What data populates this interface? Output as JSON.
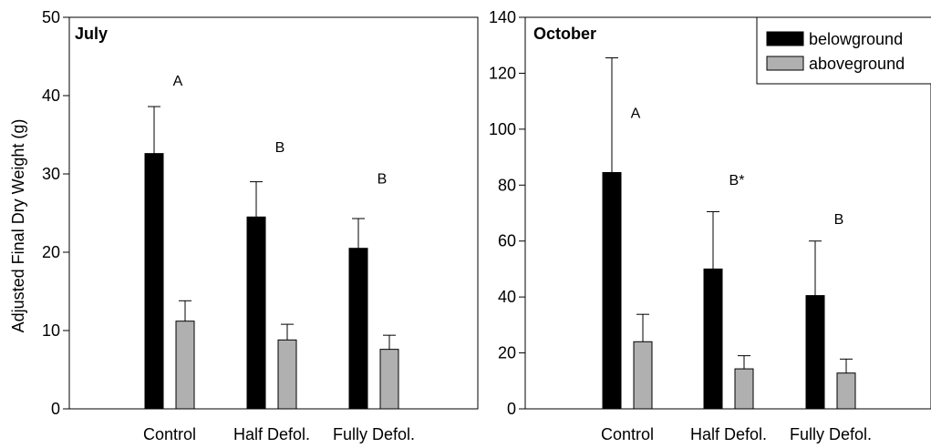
{
  "shared": {
    "ylabel": "Adjusted Final Dry Weight (g)",
    "categories": [
      "Control",
      "Half Defol.",
      "Fully Defol."
    ]
  },
  "legend": {
    "placement": "top-right",
    "items": [
      {
        "name": "belowground",
        "color": "#000000"
      },
      {
        "name": "aboveground",
        "color": "#b0b0b0"
      }
    ]
  },
  "chart_data": [
    {
      "type": "bar",
      "title": "July",
      "ylim": [
        0,
        50
      ],
      "yticks": [
        0,
        10,
        20,
        30,
        40,
        50
      ],
      "categories": [
        "Control",
        "Half Defol.",
        "Fully Defol."
      ],
      "series": [
        {
          "name": "belowground",
          "color": "#000000",
          "values": [
            32.6,
            24.5,
            20.5
          ],
          "errors": [
            6.0,
            4.5,
            3.8
          ]
        },
        {
          "name": "aboveground",
          "color": "#b0b0b0",
          "values": [
            11.2,
            8.8,
            7.6
          ],
          "errors": [
            2.6,
            2.0,
            1.8
          ]
        }
      ],
      "annotations": [
        {
          "category": 0,
          "text": "A",
          "value": 42
        },
        {
          "category": 1,
          "text": "B",
          "value": 33.5
        },
        {
          "category": 2,
          "text": "B",
          "value": 29.5
        }
      ]
    },
    {
      "type": "bar",
      "title": "October",
      "ylim": [
        0,
        140
      ],
      "yticks": [
        0,
        20,
        40,
        60,
        80,
        100,
        120,
        140
      ],
      "categories": [
        "Control",
        "Half Defol.",
        "Fully Defol."
      ],
      "series": [
        {
          "name": "belowground",
          "color": "#000000",
          "values": [
            84.5,
            50,
            40.5
          ],
          "errors": [
            41,
            20.5,
            19.5
          ]
        },
        {
          "name": "aboveground",
          "color": "#b0b0b0",
          "values": [
            24,
            14.3,
            12.8
          ],
          "errors": [
            9.8,
            4.7,
            5.0
          ]
        }
      ],
      "annotations": [
        {
          "category": 0,
          "text": "A",
          "value": 106
        },
        {
          "category": 1,
          "text": "B*",
          "value": 82
        },
        {
          "category": 2,
          "text": "B",
          "value": 68
        }
      ]
    }
  ]
}
